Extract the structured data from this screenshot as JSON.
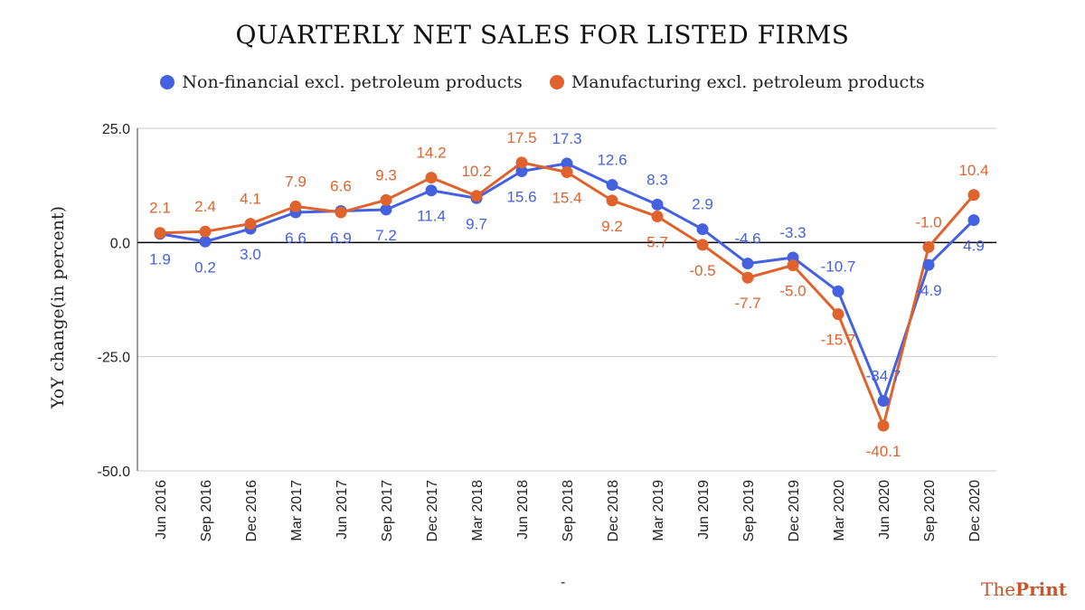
{
  "colors": {
    "series1": "#4461e0",
    "series2": "#e0622c",
    "grid": "#cccccc",
    "zero_line": "#000000",
    "brand": "#c8562a"
  },
  "footer": {
    "dash": "-"
  },
  "brand": {
    "prefix": "The",
    "name": "Print"
  },
  "chart_data": {
    "type": "line",
    "title": "QUARTERLY NET SALES FOR LISTED FIRMS",
    "ylabel": "YoY change(in percent)",
    "xlabel": "",
    "ylim": [
      -50,
      25
    ],
    "yticks": [
      25,
      0,
      -25,
      -50
    ],
    "ytick_labels": [
      "25.0",
      "0.0",
      "-25.0",
      "-50.0"
    ],
    "grid": true,
    "legend_position": "top",
    "categories": [
      "Jun 2016",
      "Sep 2016",
      "Dec 2016",
      "Mar 2017",
      "Jun 2017",
      "Sep 2017",
      "Dec 2017",
      "Mar 2018",
      "Jun 2018",
      "Sep 2018",
      "Dec 2018",
      "Mar 2019",
      "Jun 2019",
      "Sep 2019",
      "Dec 2019",
      "Mar 2020",
      "Jun 2020",
      "Sep 2020",
      "Dec 2020"
    ],
    "series": [
      {
        "name": "Non-financial excl. petroleum products",
        "values": [
          1.9,
          0.2,
          3.0,
          6.6,
          6.9,
          7.2,
          11.4,
          9.7,
          15.6,
          17.3,
          12.6,
          8.3,
          2.9,
          -4.6,
          -3.3,
          -10.7,
          -34.7,
          -4.9,
          4.9
        ],
        "labels": [
          "1.9",
          "0.2",
          "3.0",
          "6.6",
          "6.9",
          "7.2",
          "11.4",
          "9.7",
          "15.6",
          "17.3",
          "12.6",
          "8.3",
          "2.9",
          "-4.6",
          "-3.3",
          "-10.7",
          "-34.7",
          "-4.9",
          "4.9"
        ]
      },
      {
        "name": "Manufacturing excl. petroleum products",
        "values": [
          2.1,
          2.4,
          4.1,
          7.9,
          6.6,
          9.3,
          14.2,
          10.2,
          17.5,
          15.4,
          9.2,
          5.7,
          -0.5,
          -7.7,
          -5.0,
          -15.7,
          -40.1,
          -1.0,
          10.4
        ],
        "labels": [
          "2.1",
          "2.4",
          "4.1",
          "7.9",
          "6.6",
          "9.3",
          "14.2",
          "10.2",
          "17.5",
          "15.4",
          "9.2",
          "5.7",
          "-0.5",
          "-7.7",
          "-5.0",
          "-15.7",
          "-40.1",
          "-1.0",
          "10.4"
        ]
      }
    ]
  }
}
